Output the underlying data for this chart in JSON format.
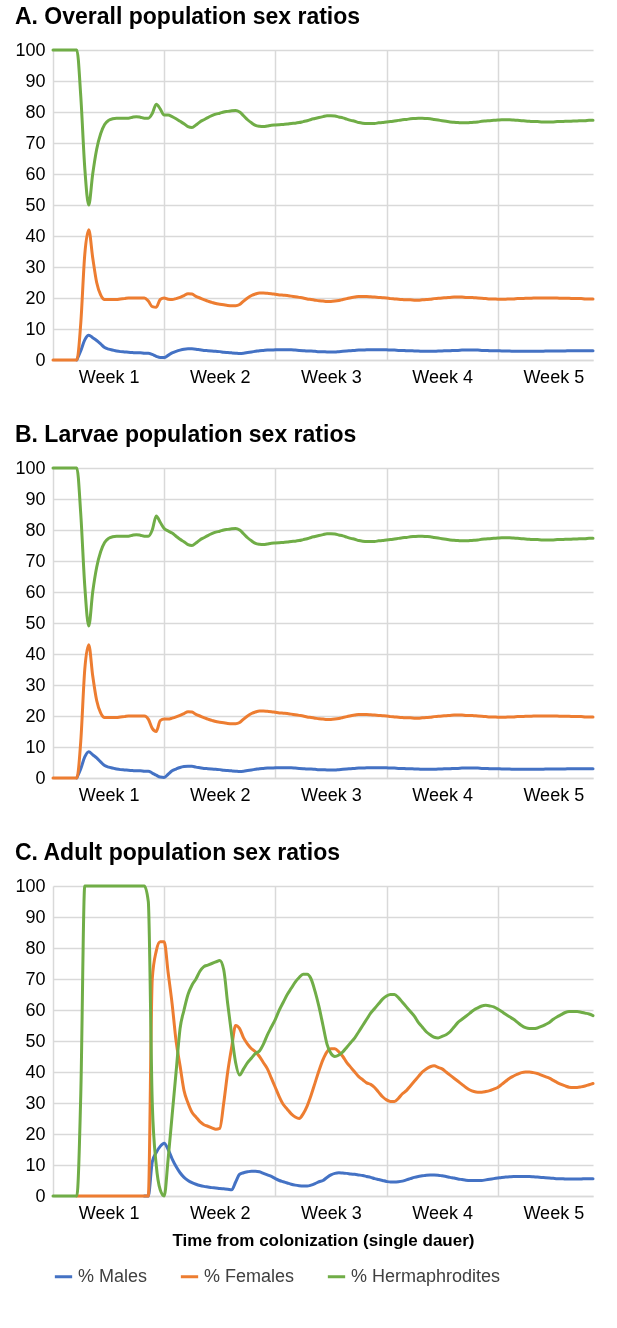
{
  "chart_data": [
    {
      "type": "line",
      "title": "A. Overall population sex ratios",
      "ylim": [
        0,
        100
      ],
      "yticks": [
        0,
        10,
        20,
        30,
        40,
        50,
        60,
        70,
        80,
        90,
        100
      ],
      "grid": true,
      "legend": false,
      "line_style": "solid",
      "marker": "none",
      "categories": [
        null,
        null,
        null,
        null,
        null,
        null,
        null,
        null,
        null,
        null,
        null,
        null,
        null,
        null,
        "Week 1",
        null,
        null,
        null,
        null,
        null,
        null,
        null,
        null,
        null,
        null,
        null,
        null,
        null,
        null,
        null,
        null,
        null,
        null,
        null,
        null,
        null,
        null,
        null,
        null,
        null,
        null,
        null,
        "Week 2",
        null,
        null,
        null,
        null,
        null,
        null,
        null,
        null,
        null,
        null,
        null,
        null,
        null,
        null,
        null,
        null,
        null,
        null,
        null,
        null,
        null,
        null,
        null,
        null,
        null,
        null,
        null,
        "Week 3",
        null,
        null,
        null,
        null,
        null,
        null,
        null,
        null,
        null,
        null,
        null,
        null,
        null,
        null,
        null,
        null,
        null,
        null,
        null,
        null,
        null,
        null,
        null,
        null,
        null,
        null,
        null,
        "Week 4",
        null,
        null,
        null,
        null,
        null,
        null,
        null,
        null,
        null,
        null,
        null,
        null,
        null,
        null,
        null,
        null,
        null,
        null,
        null,
        null,
        null,
        null,
        null,
        null,
        null,
        null,
        null,
        "Week 5",
        null,
        null,
        null,
        null,
        null,
        null,
        null,
        null,
        null,
        null
      ],
      "series": [
        {
          "color": "#4472c4",
          "values": [
            null,
            null,
            null,
            null,
            null,
            null,
            0,
            3,
            6.5,
            8,
            7.2,
            6.3,
            5.2,
            4,
            3.5,
            3.2,
            2.9,
            2.7,
            2.6,
            2.5,
            2.4,
            2.3,
            2.3,
            2.2,
            2.2,
            1.8,
            1.2,
            0.8,
            0.8,
            1.5,
            2.3,
            2.8,
            3.2,
            3.5,
            3.6,
            3.6,
            3.5,
            3.3,
            3.1,
            3,
            2.9,
            2.8,
            2.7,
            2.5,
            2.4,
            2.3,
            2.2,
            2.1,
            2.2,
            2.4,
            2.6,
            2.8,
            3,
            3.1,
            3.2,
            3.2,
            3.3,
            3.3,
            3.3,
            3.3,
            3.3,
            3.2,
            3.1,
            3,
            2.9,
            2.9,
            2.8,
            2.7,
            2.7,
            2.6,
            2.6,
            2.6,
            2.7,
            2.8,
            2.9,
            3,
            3.1,
            3.2,
            3.2,
            3.3,
            3.3,
            3.3,
            3.3,
            3.3,
            3.3,
            3.2,
            3.2,
            3.1,
            3.1,
            3,
            3,
            2.9,
            2.9,
            2.8,
            2.8,
            2.8,
            2.8,
            2.9,
            2.9,
            3,
            3,
            3.1,
            3.1,
            3.2,
            3.2,
            3.2,
            3.2,
            3.2,
            3.1,
            3.1,
            3,
            3,
            3,
            2.9,
            2.9,
            2.9,
            2.8,
            2.8,
            2.8,
            2.8,
            2.8,
            2.8,
            2.8,
            2.8,
            2.9,
            2.9,
            2.9,
            2.9,
            2.9,
            2.9,
            3,
            3,
            3,
            3,
            3,
            3,
            3
          ]
        },
        {
          "color": "#ed7d31",
          "values": [
            0,
            0,
            0,
            0,
            0,
            0,
            0,
            12,
            34,
            42,
            33,
            25,
            21,
            19.5,
            19.5,
            19.5,
            19.5,
            19.7,
            19.8,
            20,
            20,
            20,
            20,
            20,
            19,
            17.2,
            17,
            19.5,
            20,
            19.6,
            19.5,
            19.8,
            20.2,
            20.8,
            21.4,
            21.3,
            20.5,
            20,
            19.5,
            19,
            18.6,
            18.2,
            18,
            17.8,
            17.6,
            17.5,
            17.5,
            17.9,
            19,
            20,
            20.8,
            21.3,
            21.6,
            21.6,
            21.5,
            21.4,
            21.2,
            21,
            20.9,
            20.8,
            20.6,
            20.4,
            20.2,
            20,
            19.7,
            19.5,
            19.3,
            19.1,
            19,
            18.9,
            18.9,
            19,
            19.2,
            19.5,
            19.8,
            20.1,
            20.3,
            20.5,
            20.5,
            20.5,
            20.4,
            20.3,
            20.2,
            20.1,
            20,
            19.8,
            19.7,
            19.6,
            19.5,
            19.4,
            19.4,
            19.3,
            19.3,
            19.4,
            19.5,
            19.6,
            19.8,
            19.9,
            20,
            20.1,
            20.2,
            20.3,
            20.3,
            20.3,
            20.2,
            20.2,
            20.1,
            20,
            19.9,
            19.8,
            19.7,
            19.7,
            19.6,
            19.6,
            19.6,
            19.7,
            19.7,
            19.8,
            19.8,
            19.9,
            19.9,
            20,
            20,
            20,
            20,
            20,
            20,
            20,
            19.9,
            19.9,
            19.9,
            19.8,
            19.8,
            19.8,
            19.7,
            19.7,
            19.7
          ]
        },
        {
          "color": "#70ad47",
          "values": [
            100,
            100,
            100,
            100,
            100,
            100,
            100,
            85,
            62,
            50,
            60,
            68,
            73,
            76,
            77.3,
            77.8,
            78,
            78,
            78,
            78,
            78.3,
            78.5,
            78.3,
            78,
            78,
            79.5,
            82.5,
            81,
            79,
            79,
            78.5,
            77.8,
            77,
            76.2,
            75.3,
            75,
            75.8,
            76.8,
            77.5,
            78.2,
            78.8,
            79.3,
            79.6,
            80,
            80.2,
            80.4,
            80.5,
            80,
            78.8,
            77.5,
            76.5,
            75.7,
            75.4,
            75.3,
            75.5,
            75.7,
            75.8,
            75.9,
            76,
            76.1,
            76.3,
            76.4,
            76.6,
            76.9,
            77.2,
            77.6,
            77.9,
            78.2,
            78.5,
            78.8,
            78.8,
            78.7,
            78.4,
            78.1,
            77.7,
            77.3,
            77,
            76.6,
            76.4,
            76.3,
            76.3,
            76.3,
            76.5,
            76.6,
            76.8,
            76.9,
            77.1,
            77.3,
            77.5,
            77.6,
            77.8,
            77.9,
            78,
            78,
            77.9,
            77.8,
            77.6,
            77.4,
            77.2,
            77,
            76.8,
            76.7,
            76.6,
            76.5,
            76.5,
            76.6,
            76.7,
            76.8,
            77,
            77.1,
            77.2,
            77.3,
            77.4,
            77.5,
            77.5,
            77.5,
            77.4,
            77.3,
            77.2,
            77.1,
            77,
            76.9,
            76.9,
            76.8,
            76.8,
            76.8,
            76.8,
            76.9,
            76.9,
            77,
            77,
            77.1,
            77.1,
            77.2,
            77.2,
            77.3,
            77.3
          ]
        }
      ]
    },
    {
      "type": "line",
      "title": "B. Larvae population sex ratios",
      "ylim": [
        0,
        100
      ],
      "yticks": [
        0,
        10,
        20,
        30,
        40,
        50,
        60,
        70,
        80,
        90,
        100
      ],
      "grid": true,
      "legend": false,
      "line_style": "solid",
      "marker": "none",
      "categories": [
        null,
        null,
        null,
        null,
        null,
        null,
        null,
        null,
        null,
        null,
        null,
        null,
        null,
        null,
        "Week 1",
        null,
        null,
        null,
        null,
        null,
        null,
        null,
        null,
        null,
        null,
        null,
        null,
        null,
        null,
        null,
        null,
        null,
        null,
        null,
        null,
        null,
        null,
        null,
        null,
        null,
        null,
        null,
        "Week 2",
        null,
        null,
        null,
        null,
        null,
        null,
        null,
        null,
        null,
        null,
        null,
        null,
        null,
        null,
        null,
        null,
        null,
        null,
        null,
        null,
        null,
        null,
        null,
        null,
        null,
        null,
        null,
        "Week 3",
        null,
        null,
        null,
        null,
        null,
        null,
        null,
        null,
        null,
        null,
        null,
        null,
        null,
        null,
        null,
        null,
        null,
        null,
        null,
        null,
        null,
        null,
        null,
        null,
        null,
        null,
        null,
        "Week 4",
        null,
        null,
        null,
        null,
        null,
        null,
        null,
        null,
        null,
        null,
        null,
        null,
        null,
        null,
        null,
        null,
        null,
        null,
        null,
        null,
        null,
        null,
        null,
        null,
        null,
        null,
        null,
        "Week 5",
        null,
        null,
        null,
        null,
        null,
        null,
        null,
        null,
        null,
        null
      ],
      "series": [
        {
          "color": "#4472c4",
          "values": [
            null,
            null,
            null,
            null,
            null,
            null,
            0,
            3,
            6.8,
            8.5,
            7.5,
            6.5,
            5.2,
            4,
            3.5,
            3.2,
            2.9,
            2.7,
            2.6,
            2.5,
            2.4,
            2.3,
            2.3,
            2.2,
            2.2,
            1.6,
            0.9,
            0.3,
            0.2,
            1.2,
            2.3,
            2.9,
            3.4,
            3.7,
            3.8,
            3.8,
            3.5,
            3.3,
            3.1,
            3,
            2.9,
            2.8,
            2.7,
            2.5,
            2.4,
            2.3,
            2.2,
            2.1,
            2.2,
            2.4,
            2.6,
            2.8,
            3,
            3.1,
            3.2,
            3.2,
            3.3,
            3.3,
            3.3,
            3.3,
            3.3,
            3.2,
            3.1,
            3,
            2.9,
            2.9,
            2.8,
            2.7,
            2.7,
            2.6,
            2.6,
            2.6,
            2.7,
            2.8,
            2.9,
            3,
            3.1,
            3.2,
            3.2,
            3.3,
            3.3,
            3.3,
            3.3,
            3.3,
            3.3,
            3.2,
            3.2,
            3.1,
            3.1,
            3,
            3,
            2.9,
            2.9,
            2.8,
            2.8,
            2.8,
            2.8,
            2.9,
            2.9,
            3,
            3,
            3.1,
            3.1,
            3.2,
            3.2,
            3.2,
            3.2,
            3.2,
            3.1,
            3.1,
            3,
            3,
            3,
            2.9,
            2.9,
            2.9,
            2.8,
            2.8,
            2.8,
            2.8,
            2.8,
            2.8,
            2.8,
            2.8,
            2.9,
            2.9,
            2.9,
            2.9,
            2.9,
            2.9,
            3,
            3,
            3,
            3,
            3,
            3,
            3
          ]
        },
        {
          "color": "#ed7d31",
          "values": [
            0,
            0,
            0,
            0,
            0,
            0,
            0,
            12,
            35,
            43,
            33,
            25,
            21,
            19.5,
            19.5,
            19.5,
            19.5,
            19.7,
            19.8,
            20,
            20,
            20,
            20,
            20,
            19,
            16,
            15,
            18.5,
            19,
            19,
            19.3,
            19.7,
            20.2,
            20.8,
            21.4,
            21.3,
            20.5,
            20,
            19.5,
            19,
            18.6,
            18.2,
            18,
            17.8,
            17.6,
            17.5,
            17.5,
            17.9,
            19,
            20,
            20.8,
            21.3,
            21.6,
            21.6,
            21.5,
            21.4,
            21.2,
            21,
            20.9,
            20.8,
            20.6,
            20.4,
            20.2,
            20,
            19.7,
            19.5,
            19.3,
            19.1,
            19,
            18.9,
            18.9,
            19,
            19.2,
            19.5,
            19.8,
            20.1,
            20.3,
            20.5,
            20.5,
            20.5,
            20.4,
            20.3,
            20.2,
            20.1,
            20,
            19.8,
            19.7,
            19.6,
            19.5,
            19.4,
            19.4,
            19.3,
            19.3,
            19.4,
            19.5,
            19.6,
            19.8,
            19.9,
            20,
            20.1,
            20.2,
            20.3,
            20.3,
            20.3,
            20.2,
            20.2,
            20.1,
            20,
            19.9,
            19.8,
            19.7,
            19.7,
            19.6,
            19.6,
            19.6,
            19.7,
            19.7,
            19.8,
            19.8,
            19.9,
            19.9,
            20,
            20,
            20,
            20,
            20,
            20,
            20,
            19.9,
            19.9,
            19.9,
            19.8,
            19.8,
            19.8,
            19.7,
            19.7,
            19.7
          ]
        },
        {
          "color": "#70ad47",
          "values": [
            100,
            100,
            100,
            100,
            100,
            100,
            100,
            85,
            62,
            49,
            60,
            68,
            73,
            76,
            77.3,
            77.8,
            78,
            78,
            78,
            78,
            78.3,
            78.5,
            78.3,
            78,
            78,
            80,
            84.5,
            82.5,
            80.5,
            79.7,
            79,
            78,
            77,
            76.2,
            75.3,
            75,
            75.8,
            76.8,
            77.5,
            78.2,
            78.8,
            79.3,
            79.6,
            80,
            80.2,
            80.4,
            80.5,
            80,
            78.8,
            77.5,
            76.5,
            75.7,
            75.4,
            75.3,
            75.5,
            75.7,
            75.8,
            75.9,
            76,
            76.1,
            76.3,
            76.4,
            76.6,
            76.9,
            77.2,
            77.6,
            77.9,
            78.2,
            78.5,
            78.8,
            78.8,
            78.7,
            78.4,
            78.1,
            77.7,
            77.3,
            77,
            76.6,
            76.4,
            76.3,
            76.3,
            76.3,
            76.5,
            76.6,
            76.8,
            76.9,
            77.1,
            77.3,
            77.5,
            77.6,
            77.8,
            77.9,
            78,
            78,
            77.9,
            77.8,
            77.6,
            77.4,
            77.2,
            77,
            76.8,
            76.7,
            76.6,
            76.5,
            76.5,
            76.6,
            76.7,
            76.8,
            77,
            77.1,
            77.2,
            77.3,
            77.4,
            77.5,
            77.5,
            77.5,
            77.4,
            77.3,
            77.2,
            77.1,
            77,
            76.9,
            76.9,
            76.8,
            76.8,
            76.8,
            76.8,
            76.9,
            76.9,
            77,
            77,
            77.1,
            77.1,
            77.2,
            77.2,
            77.3,
            77.3
          ]
        }
      ]
    },
    {
      "type": "line",
      "title": "C. Adult population sex ratios",
      "xlabel": "Time from colonization  (single dauer)",
      "ylim": [
        0,
        100
      ],
      "yticks": [
        0,
        10,
        20,
        30,
        40,
        50,
        60,
        70,
        80,
        90,
        100
      ],
      "grid": true,
      "legend": "bottom",
      "line_style": "solid",
      "marker": "none",
      "categories": [
        null,
        null,
        null,
        null,
        null,
        null,
        null,
        null,
        null,
        null,
        null,
        null,
        null,
        null,
        "Week 1",
        null,
        null,
        null,
        null,
        null,
        null,
        null,
        null,
        null,
        null,
        null,
        null,
        null,
        null,
        null,
        null,
        null,
        null,
        null,
        null,
        null,
        null,
        null,
        null,
        null,
        null,
        null,
        "Week 2",
        null,
        null,
        null,
        null,
        null,
        null,
        null,
        null,
        null,
        null,
        null,
        null,
        null,
        null,
        null,
        null,
        null,
        null,
        null,
        null,
        null,
        null,
        null,
        null,
        null,
        null,
        null,
        "Week 3",
        null,
        null,
        null,
        null,
        null,
        null,
        null,
        null,
        null,
        null,
        null,
        null,
        null,
        null,
        null,
        null,
        null,
        null,
        null,
        null,
        null,
        null,
        null,
        null,
        null,
        null,
        null,
        "Week 4",
        null,
        null,
        null,
        null,
        null,
        null,
        null,
        null,
        null,
        null,
        null,
        null,
        null,
        null,
        null,
        null,
        null,
        null,
        null,
        null,
        null,
        null,
        null,
        null,
        null,
        null,
        null,
        "Week 5",
        null,
        null,
        null,
        null,
        null,
        null,
        null,
        null,
        null,
        null
      ],
      "series": [
        {
          "name": "% Males",
          "color": "#4472c4",
          "values": [
            null,
            null,
            null,
            null,
            null,
            null,
            null,
            null,
            null,
            null,
            null,
            null,
            null,
            null,
            null,
            null,
            null,
            null,
            null,
            null,
            null,
            null,
            null,
            0,
            0,
            11,
            14,
            16,
            17,
            15,
            12,
            9.5,
            7.5,
            6,
            5,
            4.3,
            3.8,
            3.4,
            3.1,
            2.9,
            2.7,
            2.6,
            2.4,
            2.3,
            2.2,
            2,
            4.5,
            7,
            7.5,
            7.8,
            8,
            8,
            7.8,
            7.3,
            6.8,
            6.3,
            5.6,
            5,
            4.6,
            4.2,
            3.8,
            3.5,
            3.3,
            3.2,
            3.2,
            3.5,
            4,
            4.6,
            5,
            6,
            6.8,
            7.3,
            7.5,
            7.4,
            7.3,
            7.1,
            7,
            6.8,
            6.6,
            6.3,
            6,
            5.6,
            5.3,
            5,
            4.7,
            4.5,
            4.5,
            4.6,
            4.8,
            5.2,
            5.6,
            6,
            6.3,
            6.5,
            6.7,
            6.8,
            6.8,
            6.7,
            6.5,
            6.3,
            6,
            5.8,
            5.5,
            5.3,
            5.1,
            5,
            5,
            5,
            5,
            5.2,
            5.4,
            5.6,
            5.8,
            6,
            6.1,
            6.2,
            6.3,
            6.3,
            6.3,
            6.3,
            6.3,
            6.2,
            6.1,
            6,
            5.9,
            5.8,
            5.7,
            5.6,
            5.6,
            5.5,
            5.5,
            5.5,
            5.5,
            5.5,
            5.6,
            5.6,
            5.6
          ]
        },
        {
          "name": "% Females",
          "color": "#ed7d31",
          "values": [
            null,
            null,
            null,
            null,
            null,
            null,
            0,
            0,
            0,
            0,
            0,
            0,
            0,
            0,
            0,
            0,
            0,
            0,
            0,
            0,
            0,
            0,
            0,
            0,
            0,
            70,
            79,
            82,
            82,
            72,
            62,
            50,
            42,
            34,
            30,
            27,
            25.5,
            24,
            23,
            22.5,
            22,
            21.5,
            21.8,
            30,
            40,
            48,
            55,
            54,
            51,
            49,
            47.5,
            46.5,
            45,
            43,
            41,
            38,
            35,
            32,
            29.5,
            28,
            26.5,
            25.5,
            25,
            26.5,
            29,
            32.5,
            36.5,
            40.5,
            44,
            46.5,
            47.5,
            47.5,
            46.5,
            45,
            43,
            41.5,
            40,
            38.5,
            37.5,
            36.5,
            36,
            35,
            33.5,
            32,
            31,
            30.5,
            30.5,
            31.5,
            33,
            34,
            35.5,
            37,
            38.5,
            40,
            41,
            41.7,
            42,
            41.5,
            41,
            40,
            39,
            38,
            37,
            36,
            35,
            34.2,
            33.7,
            33.5,
            33.5,
            33.7,
            34,
            34.5,
            35,
            36,
            37,
            38,
            38.7,
            39.3,
            39.8,
            40,
            40,
            39.8,
            39.5,
            39,
            38.5,
            38,
            37.3,
            36.6,
            36,
            35.5,
            35.1,
            35,
            35,
            35.2,
            35.5,
            35.9,
            36.3
          ]
        },
        {
          "name": "% Hermaphrodites",
          "color": "#70ad47",
          "values": [
            0,
            0,
            0,
            0,
            0,
            0,
            0,
            33,
            100,
            100,
            100,
            100,
            100,
            100,
            100,
            100,
            100,
            100,
            100,
            100,
            100,
            100,
            100,
            100,
            95,
            30,
            10,
            2,
            0,
            12,
            26,
            40,
            54,
            60,
            65,
            68,
            70,
            72.5,
            74,
            74.5,
            75,
            75.5,
            76,
            73,
            62,
            52,
            43,
            39,
            41,
            43,
            44.5,
            46,
            46.8,
            49,
            52,
            54.5,
            57,
            60,
            62.5,
            65,
            67,
            69,
            70.5,
            71.5,
            71.5,
            70,
            66,
            61,
            55,
            49,
            46,
            45,
            45.5,
            46.5,
            48,
            49.5,
            51,
            53,
            55,
            57,
            59,
            60.5,
            62,
            63.5,
            64.5,
            65,
            65,
            64,
            62.5,
            61,
            59.5,
            58,
            56,
            54.5,
            53,
            52,
            51.2,
            51,
            51.5,
            52,
            53,
            54.5,
            56,
            57,
            58,
            59,
            60,
            60.7,
            61.3,
            61.5,
            61.3,
            61,
            60.3,
            59.5,
            58.6,
            57.8,
            57,
            56,
            55,
            54.3,
            54,
            54,
            54.2,
            54.7,
            55.3,
            56,
            57,
            57.8,
            58.5,
            59.2,
            59.5,
            59.5,
            59.5,
            59.3,
            59,
            58.7,
            58.2
          ]
        }
      ]
    }
  ]
}
